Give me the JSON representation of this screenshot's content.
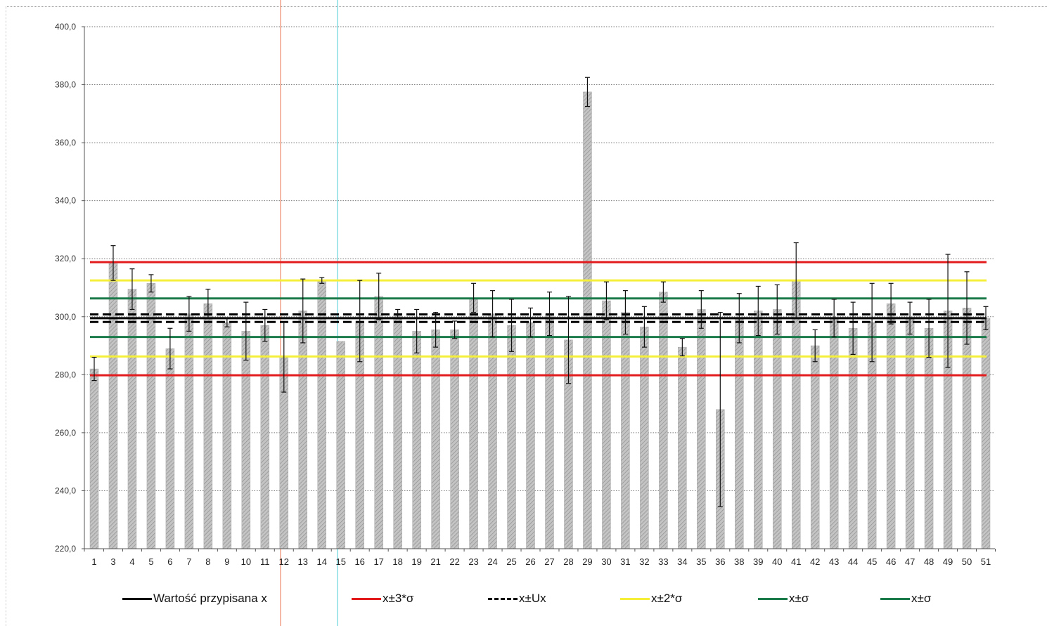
{
  "chart_data": {
    "type": "bar",
    "title": "",
    "xlabel": "",
    "ylabel": "",
    "ylim": [
      220,
      400
    ],
    "y_ticks": [
      "220,0",
      "240,0",
      "260,0",
      "280,0",
      "300,0",
      "320,0",
      "340,0",
      "360,0",
      "380,0",
      "400,0"
    ],
    "y_tick_values": [
      220,
      240,
      260,
      280,
      300,
      320,
      340,
      360,
      380,
      400
    ],
    "grid": true,
    "legend_position": "bottom",
    "categories": [
      "1",
      "3",
      "4",
      "5",
      "6",
      "7",
      "8",
      "9",
      "10",
      "11",
      "12",
      "13",
      "14",
      "15",
      "16",
      "17",
      "18",
      "19",
      "21",
      "22",
      "23",
      "24",
      "25",
      "26",
      "27",
      "28",
      "29",
      "30",
      "31",
      "32",
      "33",
      "34",
      "35",
      "36",
      "38",
      "39",
      "40",
      "41",
      "42",
      "43",
      "44",
      "45",
      "46",
      "47",
      "48",
      "49",
      "50",
      "51"
    ],
    "values": [
      282.0,
      318.5,
      309.5,
      311.5,
      289.0,
      301.0,
      304.5,
      298.0,
      295.0,
      297.0,
      286.0,
      302.0,
      312.5,
      291.5,
      298.5,
      307.0,
      301.0,
      295.0,
      295.5,
      295.5,
      306.5,
      301.0,
      297.0,
      298.0,
      301.0,
      292.0,
      377.5,
      305.5,
      301.5,
      296.5,
      308.5,
      289.5,
      302.5,
      268.0,
      299.5,
      302.0,
      302.5,
      312.5,
      290.0,
      299.5,
      296.0,
      298.0,
      304.5,
      299.5,
      296.0,
      302.0,
      303.0,
      299.5
    ],
    "errors": [
      4.0,
      6.0,
      7.0,
      3.0,
      7.0,
      6.0,
      5.0,
      1.5,
      10.0,
      5.5,
      12.0,
      11.0,
      1.0,
      0.0,
      14.0,
      8.0,
      1.5,
      7.5,
      6.0,
      3.0,
      5.0,
      8.0,
      9.0,
      5.0,
      7.5,
      15.0,
      5.0,
      6.5,
      7.5,
      7.0,
      3.5,
      3.0,
      6.5,
      33.5,
      8.5,
      8.5,
      8.5,
      13.0,
      5.5,
      6.5,
      9.0,
      13.5,
      7.0,
      5.5,
      10.0,
      19.5,
      12.5,
      4.0
    ],
    "reference_lines": [
      {
        "name": "Wartość przypisana  x",
        "color": "#000000",
        "style": "solid",
        "values": [
          299.5
        ]
      },
      {
        "name": "x±3*σ",
        "color": "#e31a1c",
        "style": "solid",
        "values": [
          279.8,
          318.8
        ]
      },
      {
        "name": "x±Ux",
        "color": "#000000",
        "style": "dashed",
        "values": [
          298.2,
          300.8
        ]
      },
      {
        "name": "x±2*σ",
        "color": "#f5ef3a",
        "style": "solid",
        "values": [
          286.3,
          312.5
        ]
      },
      {
        "name": "x±σ",
        "color": "#1a7a4a",
        "style": "solid",
        "values": [
          293.0,
          306.3
        ]
      },
      {
        "name": "x±σ",
        "color": "#1a7a4a",
        "style": "solid",
        "values": []
      }
    ],
    "bar_color": "#b4b4b4"
  }
}
